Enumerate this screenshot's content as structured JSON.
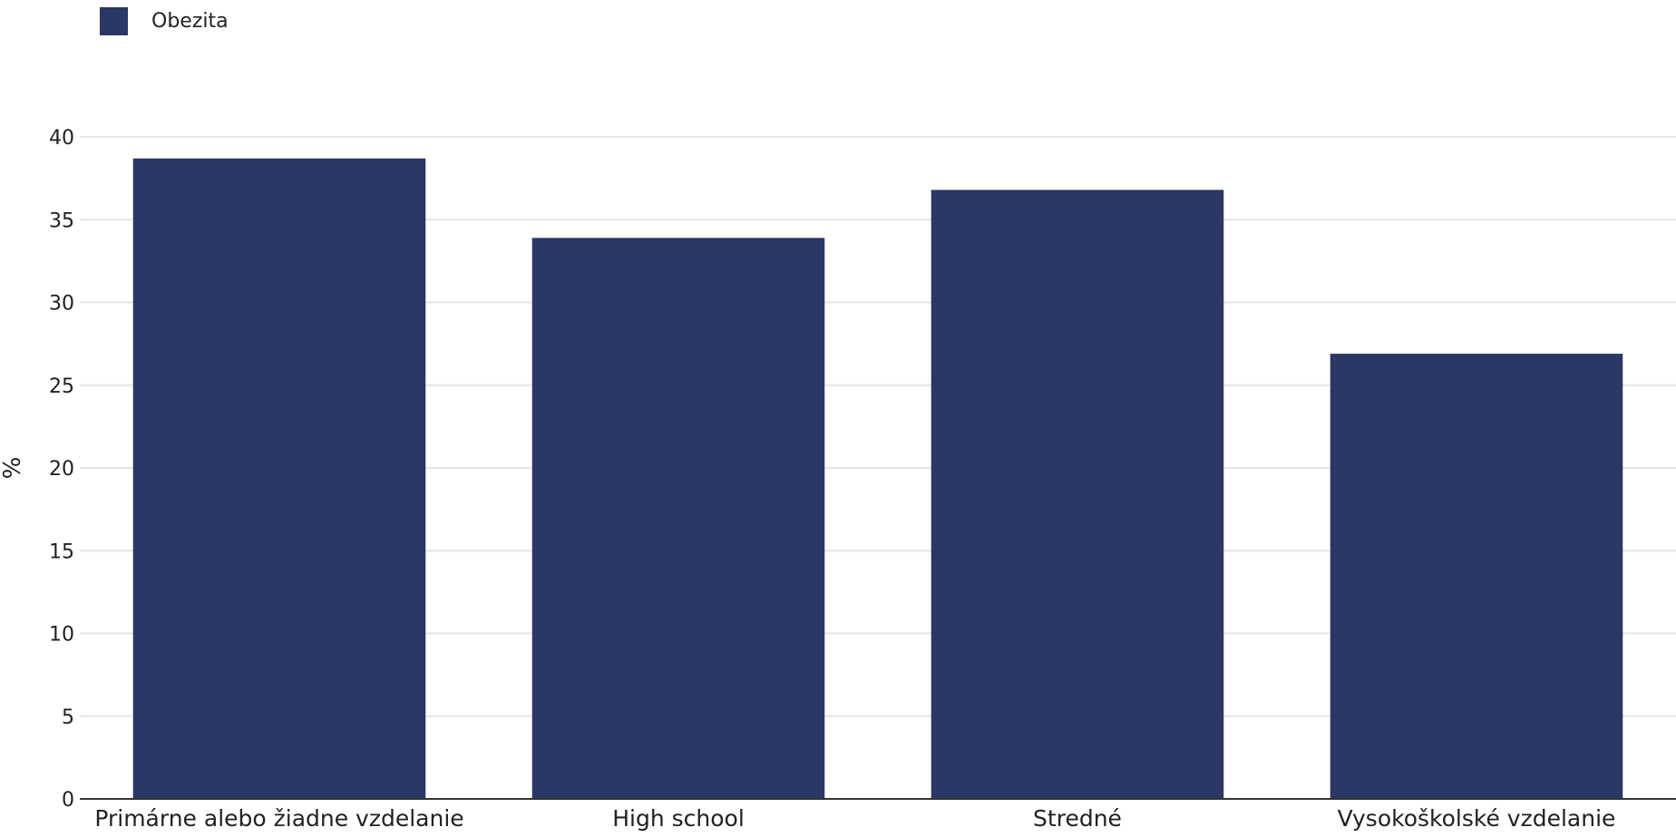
{
  "legend": {
    "label": "Obezita",
    "color": "#2b3764"
  },
  "chart_data": {
    "type": "bar",
    "categories": [
      "Primárne alebo žiadne vzdelanie",
      "High school",
      "Stredné",
      "Vysokoškolské vzdelanie"
    ],
    "series": [
      {
        "name": "Obezita",
        "values": [
          38.7,
          33.9,
          36.8,
          26.9
        ]
      }
    ],
    "xlabel": "",
    "ylabel": "%",
    "ylim": [
      0,
      40
    ],
    "yticks": [
      0,
      5,
      10,
      15,
      20,
      25,
      30,
      35,
      40
    ],
    "grid": true,
    "legend_position": "top-left",
    "colors": {
      "bar": "#2b3764",
      "grid": "#e6e6e6",
      "axis": "#333333"
    }
  }
}
